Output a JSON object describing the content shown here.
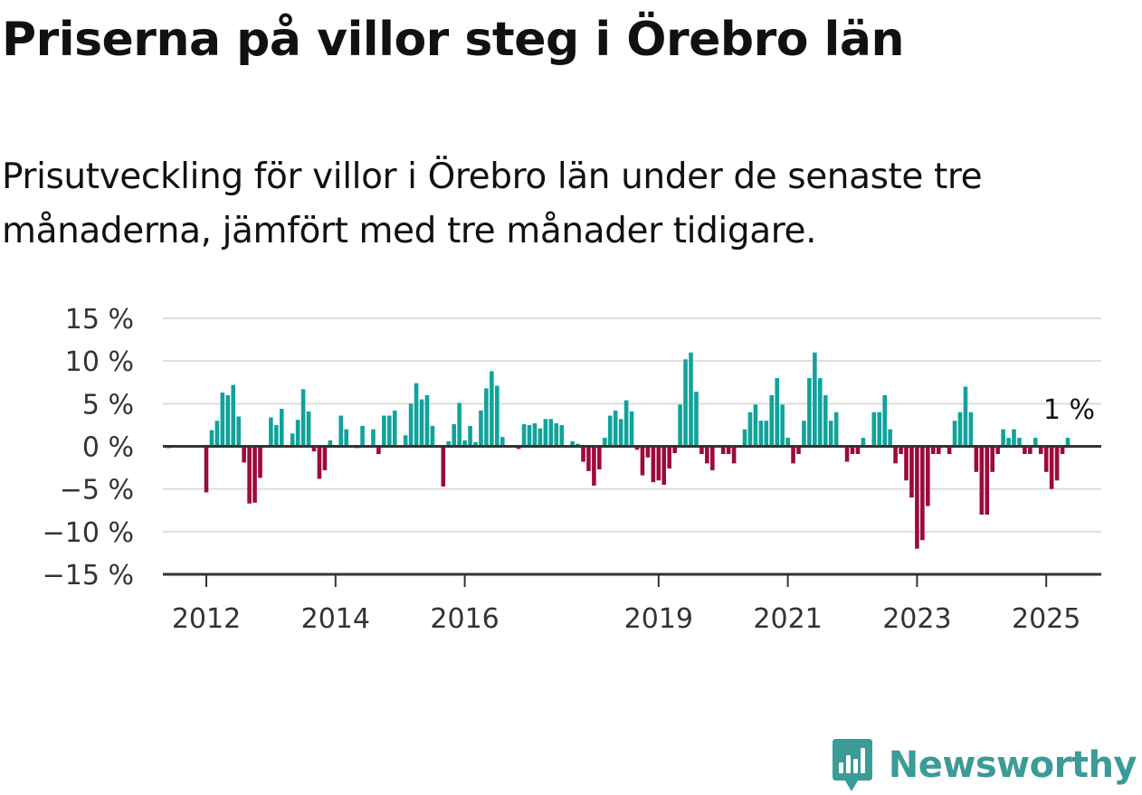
{
  "header": {
    "title": "Priserna på villor steg i Örebro län",
    "subtitle": "Prisutveckling för villor i Örebro län under de senaste tre månaderna, jämfört med tre månader tidigare."
  },
  "brand": {
    "name": "Newsworthy",
    "icon": "newsworthy-logo-icon",
    "color": "#3a9b97"
  },
  "chart_data": {
    "type": "bar",
    "y_tick_labels": [
      "15 %",
      "10 %",
      "5 %",
      "0 %",
      "−5 %",
      "−10 %",
      "−15 %"
    ],
    "y_ticks": [
      15,
      10,
      5,
      0,
      -5,
      -10,
      -15
    ],
    "ylim": [
      -15,
      15
    ],
    "x_tick_labels": [
      "2012",
      "2014",
      "2016",
      "2019",
      "2021",
      "2023",
      "2025"
    ],
    "x_tick_years": [
      2012,
      2014,
      2016,
      2019,
      2021,
      2023,
      2025
    ],
    "start": "2011-06",
    "end_label": "1 %",
    "grid": true,
    "colors": {
      "positive": "#10a39b",
      "negative": "#9c0a3d",
      "grid": "#dddddd",
      "axis": "#333333"
    },
    "series": [
      {
        "values": [
          -0.2,
          0,
          0,
          0,
          0,
          0,
          0,
          -5.4,
          1.9,
          3.0,
          6.3,
          6.0,
          7.2,
          3.5,
          -1.9,
          -6.7,
          -6.6,
          -3.7,
          0,
          3.4,
          2.5,
          4.4,
          0,
          1.5,
          3.1,
          6.7,
          4.1,
          -0.6,
          -3.8,
          -2.8,
          0.7,
          0.1,
          3.6,
          2.0,
          0,
          -0.2,
          2.4,
          0,
          2.0,
          -0.9,
          3.6,
          3.6,
          4.2,
          0,
          1.3,
          5.0,
          7.4,
          5.5,
          6.0,
          2.4,
          0.1,
          -4.7,
          0.6,
          2.6,
          5.1,
          0.7,
          2.4,
          0.5,
          4.2,
          6.8,
          8.8,
          7.1,
          1.1,
          0,
          0,
          -0.3,
          2.6,
          2.5,
          2.7,
          2.1,
          3.2,
          3.2,
          2.7,
          2.5,
          0,
          0.6,
          0.3,
          -1.8,
          -2.9,
          -4.6,
          -2.7,
          1.0,
          3.6,
          4.2,
          3.2,
          5.4,
          4.1,
          -0.4,
          -3.4,
          -1.3,
          -4.2,
          -4.0,
          -4.5,
          -2.6,
          -0.8,
          4.9,
          10.2,
          11.0,
          6.4,
          -0.9,
          -2.0,
          -2.8,
          0,
          -0.9,
          -0.9,
          -2.0,
          0,
          2.0,
          4.0,
          4.9,
          3.0,
          3.0,
          6.0,
          8.0,
          4.9,
          1.0,
          -2.0,
          -0.9,
          3.0,
          8.0,
          11.0,
          8.0,
          6.0,
          3.0,
          4.0,
          0,
          -1.8,
          -0.9,
          -0.9,
          1.0,
          0,
          4.0,
          4.0,
          6.0,
          2.0,
          -2.0,
          -0.9,
          -4.0,
          -6.0,
          -12.0,
          -11.0,
          -7.0,
          -0.9,
          -0.9,
          0,
          -0.9,
          3.0,
          4.0,
          7.0,
          4.0,
          -3.0,
          -8.0,
          -8.0,
          -3.0,
          -0.9,
          2.0,
          1.0,
          2.0,
          1.0,
          -0.9,
          -0.9,
          1.0,
          -0.9,
          -3.0,
          -5.0,
          -4.0,
          -0.9,
          1.0
        ]
      }
    ]
  }
}
